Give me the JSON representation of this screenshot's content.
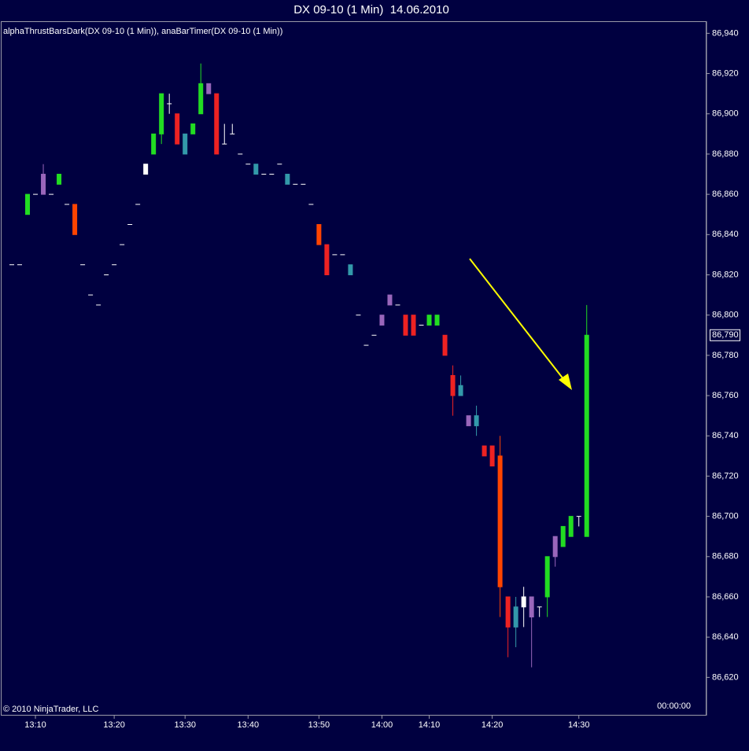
{
  "chart_data": {
    "type": "candlestick",
    "title": "DX 09-10 (1 Min)  14.06.2010",
    "indicator_label": "alphaThrustBarsDark(DX 09-10 (1 Min)), anaBarTimer(DX 09-10 (1 Min))",
    "copyright": "© 2010 NinjaTrader, LLC",
    "timer": "00:00:00",
    "last_price": {
      "value": 86790,
      "label": "86,790"
    },
    "categories": [
      null,
      null,
      null,
      "13:10",
      null,
      null,
      null,
      null,
      null,
      null,
      null,
      null,
      null,
      "13:20",
      null,
      null,
      null,
      null,
      null,
      null,
      null,
      null,
      "13:30",
      null,
      null,
      null,
      null,
      null,
      null,
      null,
      "13:40",
      null,
      null,
      null,
      null,
      null,
      null,
      null,
      null,
      "13:50",
      null,
      null,
      null,
      null,
      null,
      null,
      null,
      "14:00",
      null,
      null,
      null,
      null,
      null,
      "14:10",
      null,
      null,
      null,
      null,
      null,
      null,
      null,
      "14:20",
      null,
      null,
      null,
      null,
      null,
      null,
      null,
      null,
      null,
      null,
      "14:30",
      null
    ],
    "open": [
      86825,
      86825,
      86850,
      86860,
      86860,
      86860,
      86865,
      86855,
      86855,
      86825,
      86810,
      86805,
      86820,
      86825,
      86835,
      86845,
      86855,
      86870,
      86880,
      86890,
      86905,
      86900,
      86880,
      86890,
      86900,
      86915,
      86910,
      86885,
      86890,
      86880,
      86875,
      86875,
      86870,
      86870,
      86875,
      86870,
      86865,
      86865,
      86855,
      86845,
      86835,
      86830,
      86830,
      86825,
      86800,
      86785,
      86790,
      86795,
      86805,
      86805,
      86800,
      86800,
      86795,
      86795,
      86795,
      86790,
      86770,
      86760,
      86750,
      86745,
      86735,
      86735,
      86730,
      86660,
      86645,
      86655,
      86660,
      86655,
      86660,
      86680,
      86685,
      86690,
      86700,
      86690
    ],
    "high": [
      86825,
      86825,
      86860,
      86860,
      86875,
      86860,
      86870,
      86855,
      86855,
      86825,
      86810,
      86805,
      86820,
      86825,
      86835,
      86845,
      86855,
      86875,
      86890,
      86910,
      86910,
      86900,
      86890,
      86895,
      86925,
      86915,
      86910,
      86895,
      86895,
      86880,
      86875,
      86875,
      86870,
      86870,
      86875,
      86870,
      86865,
      86865,
      86855,
      86845,
      86835,
      86830,
      86830,
      86825,
      86800,
      86785,
      86790,
      86800,
      86810,
      86805,
      86800,
      86800,
      86795,
      86800,
      86800,
      86790,
      86775,
      86770,
      86750,
      86755,
      86735,
      86735,
      86740,
      86660,
      86660,
      86665,
      86660,
      86655,
      86680,
      86690,
      86695,
      86700,
      86700,
      86805
    ],
    "low": [
      86825,
      86825,
      86850,
      86860,
      86860,
      86860,
      86865,
      86855,
      86840,
      86825,
      86810,
      86805,
      86820,
      86825,
      86835,
      86845,
      86855,
      86870,
      86880,
      86885,
      86900,
      86885,
      86880,
      86890,
      86900,
      86910,
      86880,
      86885,
      86890,
      86880,
      86875,
      86870,
      86870,
      86870,
      86875,
      86865,
      86865,
      86865,
      86855,
      86835,
      86820,
      86830,
      86830,
      86820,
      86800,
      86785,
      86790,
      86795,
      86805,
      86805,
      86790,
      86790,
      86795,
      86795,
      86795,
      86780,
      86750,
      86760,
      86745,
      86740,
      86730,
      86725,
      86650,
      86630,
      86635,
      86645,
      86625,
      86650,
      86650,
      86675,
      86685,
      86690,
      86695,
      86690
    ],
    "close": [
      86825,
      86825,
      86860,
      86860,
      86870,
      86860,
      86870,
      86855,
      86840,
      86825,
      86810,
      86805,
      86820,
      86825,
      86835,
      86845,
      86855,
      86875,
      86890,
      86910,
      86905,
      86885,
      86890,
      86895,
      86915,
      86910,
      86880,
      86885,
      86890,
      86880,
      86875,
      86870,
      86870,
      86870,
      86875,
      86865,
      86865,
      86865,
      86855,
      86835,
      86820,
      86830,
      86830,
      86820,
      86800,
      86785,
      86790,
      86800,
      86810,
      86805,
      86790,
      86790,
      86795,
      86800,
      86800,
      86780,
      86760,
      86765,
      86745,
      86750,
      86730,
      86725,
      86665,
      86645,
      86655,
      86660,
      86650,
      86655,
      86680,
      86690,
      86695,
      86700,
      86700,
      86790
    ],
    "colors": [
      "#ffffff",
      "#ffffff",
      "#22dd22",
      "#ffffff",
      "#9966bb",
      "#ffffff",
      "#22dd22",
      "#ffffff",
      "#ff4400",
      "#ffffff",
      "#ffffff",
      "#ffffff",
      "#ffffff",
      "#ffffff",
      "#ffffff",
      "#ffffff",
      "#ffffff",
      "#ffffff",
      "#22dd22",
      "#22dd22",
      "#ffffff",
      "#ee2222",
      "#3399aa",
      "#22dd22",
      "#22dd22",
      "#9966bb",
      "#ee2222",
      "#ffffff",
      "#ffffff",
      "#ffffff",
      "#ffffff",
      "#3399aa",
      "#ffffff",
      "#ffffff",
      "#ffffff",
      "#3399aa",
      "#ffffff",
      "#ffffff",
      "#ffffff",
      "#ff4400",
      "#ee2222",
      "#ffffff",
      "#ffffff",
      "#3399aa",
      "#ffffff",
      "#ffffff",
      "#ffffff",
      "#9966bb",
      "#9966bb",
      "#ffffff",
      "#ee2222",
      "#ee2222",
      "#ffffff",
      "#22dd22",
      "#22dd22",
      "#ee2222",
      "#ee2222",
      "#3399aa",
      "#9966bb",
      "#3399aa",
      "#ee2222",
      "#ee2222",
      "#ff4400",
      "#ee2222",
      "#3399aa",
      "#ffffff",
      "#9966bb",
      "#ffffff",
      "#22dd22",
      "#9966bb",
      "#22dd22",
      "#22dd22",
      "#ffffff",
      "#22dd22"
    ],
    "ylim": [
      86601,
      86946
    ],
    "yticks": [
      {
        "value": 86620,
        "label": "86,620"
      },
      {
        "value": 86640,
        "label": "86,640"
      },
      {
        "value": 86660,
        "label": "86,660"
      },
      {
        "value": 86680,
        "label": "86,680"
      },
      {
        "value": 86700,
        "label": "86,700"
      },
      {
        "value": 86720,
        "label": "86,720"
      },
      {
        "value": 86740,
        "label": "86,740"
      },
      {
        "value": 86760,
        "label": "86,760"
      },
      {
        "value": 86780,
        "label": "86,780"
      },
      {
        "value": 86800,
        "label": "86,800"
      },
      {
        "value": 86820,
        "label": "86,820"
      },
      {
        "value": 86840,
        "label": "86,840"
      },
      {
        "value": 86860,
        "label": "86,860"
      },
      {
        "value": 86880,
        "label": "86,880"
      },
      {
        "value": 86900,
        "label": "86,900"
      },
      {
        "value": 86920,
        "label": "86,920"
      },
      {
        "value": 86940,
        "label": "86,940"
      }
    ]
  }
}
